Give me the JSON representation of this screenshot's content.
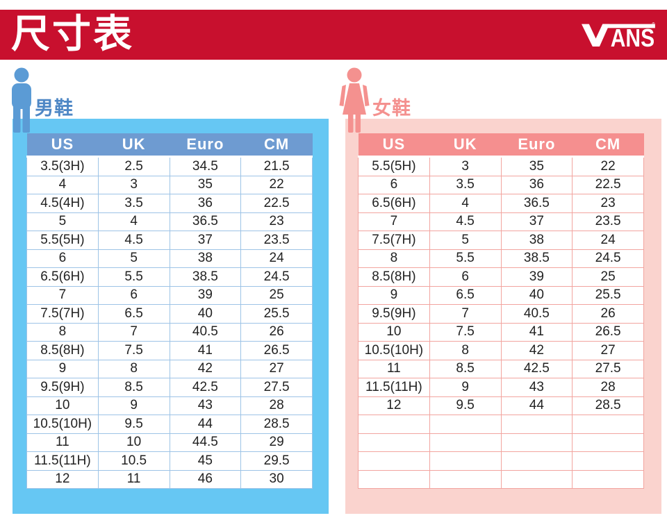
{
  "banner": {
    "title": "尺寸表",
    "brand": "VANS",
    "registered_mark": "®",
    "background_color": "#C8102E"
  },
  "men": {
    "section_label": "男鞋",
    "icon": "male-figure-icon",
    "accent_color": "#4E87C5",
    "icon_color": "#5B9BD5",
    "panel_color": "#66C7F3",
    "header_color": "#6E9BD1",
    "border_color": "#9DC3E6",
    "columns": [
      "US",
      "UK",
      "Euro",
      "CM"
    ],
    "rows": [
      [
        "3.5(3H)",
        "2.5",
        "34.5",
        "21.5"
      ],
      [
        "4",
        "3",
        "35",
        "22"
      ],
      [
        "4.5(4H)",
        "3.5",
        "36",
        "22.5"
      ],
      [
        "5",
        "4",
        "36.5",
        "23"
      ],
      [
        "5.5(5H)",
        "4.5",
        "37",
        "23.5"
      ],
      [
        "6",
        "5",
        "38",
        "24"
      ],
      [
        "6.5(6H)",
        "5.5",
        "38.5",
        "24.5"
      ],
      [
        "7",
        "6",
        "39",
        "25"
      ],
      [
        "7.5(7H)",
        "6.5",
        "40",
        "25.5"
      ],
      [
        "8",
        "7",
        "40.5",
        "26"
      ],
      [
        "8.5(8H)",
        "7.5",
        "41",
        "26.5"
      ],
      [
        "9",
        "8",
        "42",
        "27"
      ],
      [
        "9.5(9H)",
        "8.5",
        "42.5",
        "27.5"
      ],
      [
        "10",
        "9",
        "43",
        "28"
      ],
      [
        "10.5(10H)",
        "9.5",
        "44",
        "28.5"
      ],
      [
        "11",
        "10",
        "44.5",
        "29"
      ],
      [
        "11.5(11H)",
        "10.5",
        "45",
        "29.5"
      ],
      [
        "12",
        "11",
        "46",
        "30"
      ]
    ]
  },
  "women": {
    "section_label": "女鞋",
    "icon": "female-figure-icon",
    "accent_color": "#F4918F",
    "icon_color": "#F4918F",
    "panel_color": "#FAD3CE",
    "header_color": "#F58F8F",
    "border_color": "#F2A49F",
    "columns": [
      "US",
      "UK",
      "Euro",
      "CM"
    ],
    "rows": [
      [
        "5.5(5H)",
        "3",
        "35",
        "22"
      ],
      [
        "6",
        "3.5",
        "36",
        "22.5"
      ],
      [
        "6.5(6H)",
        "4",
        "36.5",
        "23"
      ],
      [
        "7",
        "4.5",
        "37",
        "23.5"
      ],
      [
        "7.5(7H)",
        "5",
        "38",
        "24"
      ],
      [
        "8",
        "5.5",
        "38.5",
        "24.5"
      ],
      [
        "8.5(8H)",
        "6",
        "39",
        "25"
      ],
      [
        "9",
        "6.5",
        "40",
        "25.5"
      ],
      [
        "9.5(9H)",
        "7",
        "40.5",
        "26"
      ],
      [
        "10",
        "7.5",
        "41",
        "26.5"
      ],
      [
        "10.5(10H)",
        "8",
        "42",
        "27"
      ],
      [
        "11",
        "8.5",
        "42.5",
        "27.5"
      ],
      [
        "11.5(11H)",
        "9",
        "43",
        "28"
      ],
      [
        "12",
        "9.5",
        "44",
        "28.5"
      ],
      [
        "",
        "",
        "",
        ""
      ],
      [
        "",
        "",
        "",
        ""
      ],
      [
        "",
        "",
        "",
        ""
      ],
      [
        "",
        "",
        "",
        ""
      ]
    ]
  }
}
